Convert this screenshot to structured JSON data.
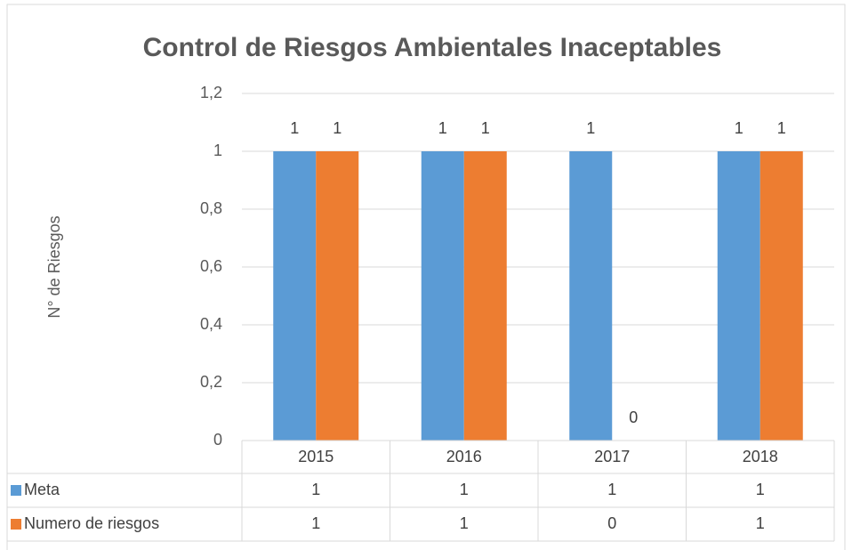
{
  "chart_data": {
    "type": "bar",
    "title": "Control de Riesgos Ambientales Inaceptables",
    "y_label": "N° de Riesgos",
    "categories": [
      "2015",
      "2016",
      "2017",
      "2018"
    ],
    "series": [
      {
        "name": "Meta",
        "color": "#5b9bd5",
        "values": [
          1,
          1,
          1,
          1
        ]
      },
      {
        "name": "Numero de riesgos",
        "color": "#ed7d31",
        "values": [
          1,
          1,
          0,
          1
        ]
      }
    ],
    "ylim": [
      0,
      1.2
    ],
    "yticks": [
      0,
      {
        "value": 0.2,
        "label": "0,2"
      },
      {
        "value": 0.4,
        "label": "0,4"
      },
      {
        "value": 0.6,
        "label": "0,6"
      },
      {
        "value": 0.8,
        "label": "0,8"
      },
      1,
      {
        "value": 1.2,
        "label": "1,2"
      }
    ],
    "grid": true,
    "data_table": true
  }
}
